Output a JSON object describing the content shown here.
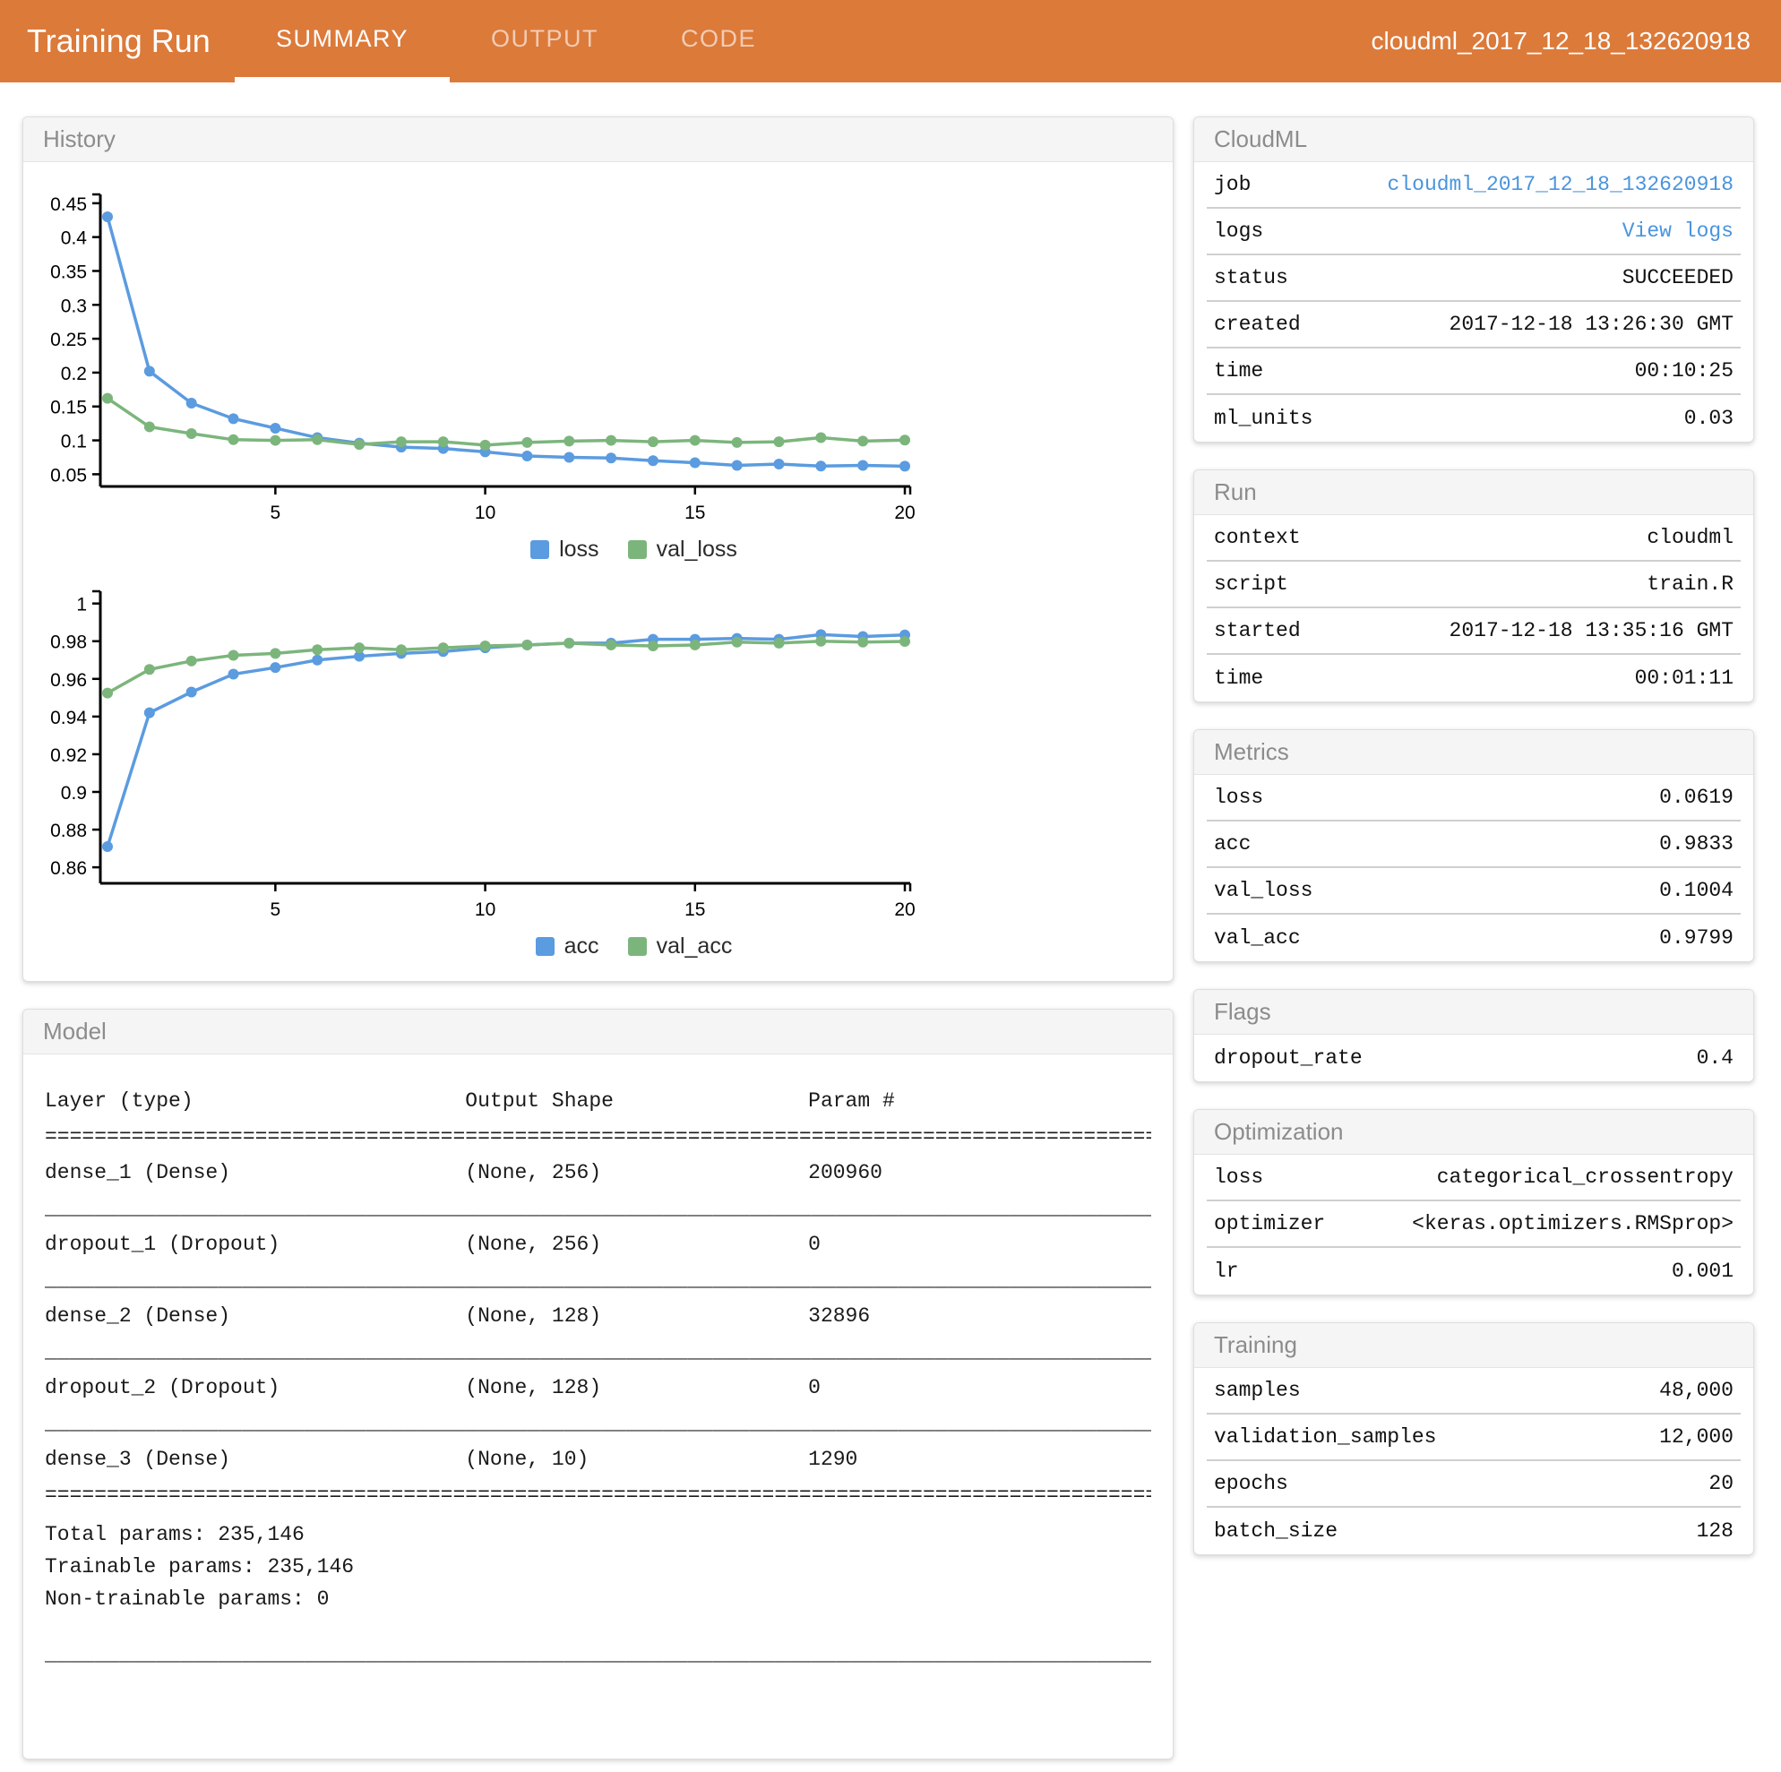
{
  "colors": {
    "header_orange": "#DC7A3A",
    "link_blue": "#4A94DD",
    "series_blue": "#5B9BE0",
    "series_green": "#7CB57C"
  },
  "header": {
    "title": "Training Run",
    "tabs": [
      {
        "label": "SUMMARY",
        "active": true
      },
      {
        "label": "OUTPUT",
        "active": false
      },
      {
        "label": "CODE",
        "active": false
      }
    ],
    "job_name": "cloudml_2017_12_18_132620918"
  },
  "history": {
    "title": "History"
  },
  "chart_data": [
    {
      "type": "line",
      "title": "loss history",
      "x": [
        1,
        2,
        3,
        4,
        5,
        6,
        7,
        8,
        9,
        10,
        11,
        12,
        13,
        14,
        15,
        16,
        17,
        18,
        19,
        20
      ],
      "series": [
        {
          "name": "loss",
          "color": "#5B9BE0",
          "values": [
            0.43,
            0.202,
            0.155,
            0.132,
            0.118,
            0.104,
            0.096,
            0.09,
            0.088,
            0.083,
            0.077,
            0.075,
            0.074,
            0.07,
            0.067,
            0.063,
            0.065,
            0.062,
            0.063,
            0.0619
          ]
        },
        {
          "name": "val_loss",
          "color": "#7CB57C",
          "values": [
            0.162,
            0.12,
            0.11,
            0.101,
            0.1,
            0.101,
            0.094,
            0.098,
            0.098,
            0.093,
            0.097,
            0.099,
            0.1,
            0.098,
            0.1,
            0.097,
            0.098,
            0.104,
            0.099,
            0.1004
          ]
        }
      ],
      "xticks": [
        5,
        10,
        15,
        20
      ],
      "yticks": [
        0.45,
        0.4,
        0.35,
        0.3,
        0.25,
        0.2,
        0.15,
        0.1,
        0.05
      ],
      "xlim": [
        1,
        20
      ],
      "ylim": [
        0.032,
        0.463
      ],
      "grid": false,
      "legend_position": "bottom"
    },
    {
      "type": "line",
      "title": "accuracy history",
      "x": [
        1,
        2,
        3,
        4,
        5,
        6,
        7,
        8,
        9,
        10,
        11,
        12,
        13,
        14,
        15,
        16,
        17,
        18,
        19,
        20
      ],
      "series": [
        {
          "name": "acc",
          "color": "#5B9BE0",
          "values": [
            0.871,
            0.942,
            0.953,
            0.9625,
            0.966,
            0.97,
            0.972,
            0.9735,
            0.9745,
            0.9765,
            0.978,
            0.979,
            0.979,
            0.981,
            0.981,
            0.9815,
            0.981,
            0.9835,
            0.9825,
            0.9833
          ]
        },
        {
          "name": "val_acc",
          "color": "#7CB57C",
          "values": [
            0.9525,
            0.965,
            0.9695,
            0.9725,
            0.9735,
            0.9755,
            0.9765,
            0.9755,
            0.9765,
            0.9775,
            0.978,
            0.979,
            0.978,
            0.9775,
            0.978,
            0.9795,
            0.979,
            0.98,
            0.9795,
            0.9799
          ]
        }
      ],
      "xticks": [
        5,
        10,
        15,
        20
      ],
      "yticks": [
        1,
        0.98,
        0.96,
        0.94,
        0.92,
        0.9,
        0.88,
        0.86
      ],
      "xlim": [
        1,
        20
      ],
      "ylim": [
        0.8515,
        1.0065
      ],
      "grid": false,
      "legend_position": "bottom"
    }
  ],
  "model": {
    "title": "Model",
    "lines": [
      {
        "kind": "cols",
        "layer": "Layer (type)",
        "output": "Output Shape",
        "params": "Param #"
      },
      {
        "kind": "sep",
        "char": "="
      },
      {
        "kind": "cols",
        "layer": "dense_1 (Dense)",
        "output": "(None, 256)",
        "params": "200960"
      },
      {
        "kind": "sep",
        "char": "_"
      },
      {
        "kind": "cols",
        "layer": "dropout_1 (Dropout)",
        "output": "(None, 256)",
        "params": "0"
      },
      {
        "kind": "sep",
        "char": "_"
      },
      {
        "kind": "cols",
        "layer": "dense_2 (Dense)",
        "output": "(None, 128)",
        "params": "32896"
      },
      {
        "kind": "sep",
        "char": "_"
      },
      {
        "kind": "cols",
        "layer": "dropout_2 (Dropout)",
        "output": "(None, 128)",
        "params": "0"
      },
      {
        "kind": "sep",
        "char": "_"
      },
      {
        "kind": "cols",
        "layer": "dense_3 (Dense)",
        "output": "(None, 10)",
        "params": "1290"
      },
      {
        "kind": "sep",
        "char": "="
      },
      {
        "kind": "text",
        "text": "Total params: 235,146"
      },
      {
        "kind": "text",
        "text": "Trainable params: 235,146"
      },
      {
        "kind": "text",
        "text": "Non-trainable params: 0"
      },
      {
        "kind": "gap"
      },
      {
        "kind": "sep",
        "char": "_"
      }
    ]
  },
  "side_panels": [
    {
      "id": "cloudml",
      "title": "CloudML",
      "rows": [
        {
          "key": "job",
          "value": "cloudml_2017_12_18_132620918",
          "link": true
        },
        {
          "key": "logs",
          "value": "View logs",
          "link": true
        },
        {
          "key": "status",
          "value": "SUCCEEDED"
        },
        {
          "key": "created",
          "value": "2017-12-18 13:26:30 GMT"
        },
        {
          "key": "time",
          "value": "00:10:25"
        },
        {
          "key": "ml_units",
          "value": "0.03"
        }
      ]
    },
    {
      "id": "run",
      "title": "Run",
      "rows": [
        {
          "key": "context",
          "value": "cloudml"
        },
        {
          "key": "script",
          "value": "train.R"
        },
        {
          "key": "started",
          "value": "2017-12-18 13:35:16 GMT"
        },
        {
          "key": "time",
          "value": "00:01:11"
        }
      ]
    },
    {
      "id": "metrics",
      "title": "Metrics",
      "rows": [
        {
          "key": "loss",
          "value": "0.0619"
        },
        {
          "key": "acc",
          "value": "0.9833"
        },
        {
          "key": "val_loss",
          "value": "0.1004"
        },
        {
          "key": "val_acc",
          "value": "0.9799"
        }
      ]
    },
    {
      "id": "flags",
      "title": "Flags",
      "rows": [
        {
          "key": "dropout_rate",
          "value": "0.4"
        }
      ]
    },
    {
      "id": "optimization",
      "title": "Optimization",
      "rows": [
        {
          "key": "loss",
          "value": "categorical_crossentropy"
        },
        {
          "key": "optimizer",
          "value": "<keras.optimizers.RMSprop>"
        },
        {
          "key": "lr",
          "value": "0.001"
        }
      ]
    },
    {
      "id": "training",
      "title": "Training",
      "rows": [
        {
          "key": "samples",
          "value": "48,000"
        },
        {
          "key": "validation_samples",
          "value": "12,000"
        },
        {
          "key": "epochs",
          "value": "20"
        },
        {
          "key": "batch_size",
          "value": "128"
        }
      ]
    }
  ]
}
